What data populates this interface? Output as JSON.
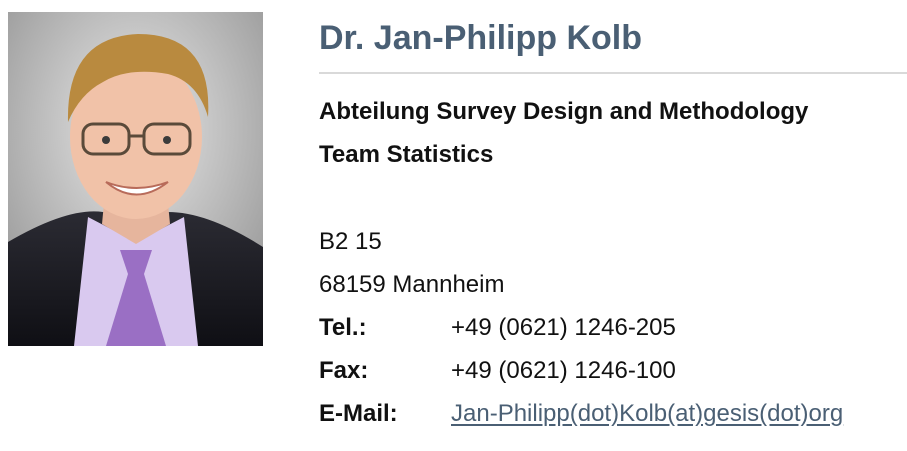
{
  "profile": {
    "name": "Dr. Jan-Philipp Kolb",
    "department": "Abteilung Survey Design and Methodology",
    "team": "Team Statistics",
    "photo_icon": "person-portrait"
  },
  "address": {
    "room": "B2 15",
    "city": "68159 Mannheim"
  },
  "contact": {
    "tel_label": "Tel.:",
    "tel_value": "+49 (0621) 1246-205",
    "fax_label": "Fax:",
    "fax_value": "+49 (0621) 1246-100",
    "email_label": "E-Mail:",
    "email_value": "Jan-Philipp(dot)Kolb(at)gesis(dot)org"
  },
  "colors": {
    "heading": "#4a5f74",
    "link": "#4a5f74",
    "rule": "#d9d9d9"
  }
}
